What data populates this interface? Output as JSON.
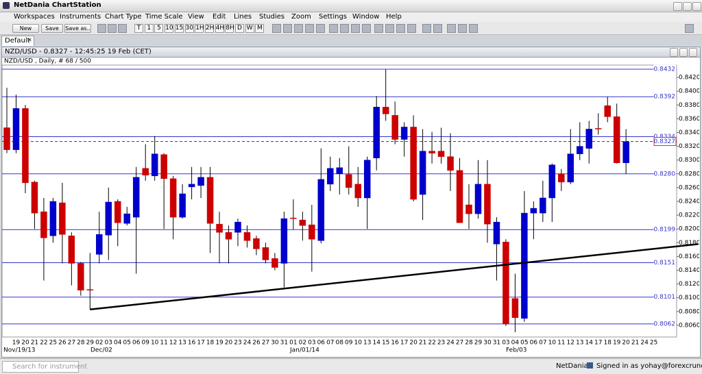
{
  "app": {
    "title": "NetDania ChartStation",
    "menu": [
      "Workspaces",
      "Instruments",
      "Chart Type",
      "Time Scale",
      "View",
      "Edit",
      "Lines",
      "Studies",
      "Zoom",
      "Settings",
      "Window",
      "Help"
    ]
  },
  "toolbar": {
    "buttons": [
      "New",
      "Save",
      "Save as.."
    ],
    "timescale": [
      "T",
      "1",
      "5",
      "10",
      "15",
      "30",
      "1H",
      "2H",
      "4H",
      "8H",
      "D",
      "W",
      "M"
    ]
  },
  "tabs": [
    "Default"
  ],
  "chart_window": {
    "title": "NZD/USD - 0.8327 - 12:45:25  19 Feb (CET)"
  },
  "chart_data": {
    "type": "candlestick",
    "title": "NZD/USD , Daily, # 68 / 500",
    "categories": [
      null,
      "19",
      "20",
      "21",
      "22",
      "25",
      "26",
      "27",
      "28",
      "29",
      "02",
      "03",
      "04",
      "05",
      "06",
      "09",
      "10",
      "11",
      "12",
      "13",
      "16",
      "17",
      "18",
      "19",
      "20",
      "23",
      "24",
      "26",
      "27",
      "30",
      "31",
      "01",
      "02",
      "03",
      "06",
      "07",
      "08",
      "09",
      "10",
      "13",
      "14",
      "15",
      "16",
      "17",
      "20",
      "21",
      "22",
      "23",
      "24",
      "27",
      "28",
      "29",
      "30",
      "31",
      "03",
      "04",
      "05",
      "06",
      "07",
      "10",
      "11",
      "12",
      "13",
      "14",
      "17",
      "18",
      "19",
      "20",
      "21",
      "24",
      "25"
    ],
    "period_labels": [
      "Nov/19/13",
      "Dec/02",
      "Jan/01/14",
      "Feb/03"
    ],
    "open": [
      0.8347,
      0.8315,
      0.8375,
      0.8268,
      0.8225,
      0.819,
      0.8238,
      0.819,
      0.815,
      0.8112,
      0.8163,
      0.8191,
      0.824,
      0.8208,
      0.8217,
      0.8288,
      0.8277,
      0.8308,
      0.8273,
      0.8217,
      0.8261,
      0.8263,
      0.8275,
      0.8207,
      0.8195,
      0.8195,
      0.8195,
      0.8186,
      0.8173,
      0.8157,
      0.815,
      0.8216,
      0.8213,
      0.8206,
      0.8183,
      0.8265,
      0.828,
      0.8279,
      0.8265,
      0.8245,
      0.8303,
      0.8377,
      0.8365,
      0.833,
      0.8348,
      0.825,
      0.8313,
      0.8313,
      0.8305,
      0.8285,
      0.8235,
      0.8222,
      0.8265,
      0.8178,
      0.8181,
      0.8099,
      0.807,
      0.8223,
      0.8223,
      0.8245,
      0.828,
      0.8268,
      0.8309,
      0.8317,
      0.8346,
      0.8379,
      0.8363,
      0.8296,
      null,
      null,
      null
    ],
    "high": [
      0.8405,
      0.8395,
      0.838,
      0.827,
      0.8245,
      0.8245,
      0.8267,
      0.8195,
      0.8152,
      0.8165,
      0.8225,
      0.826,
      0.8243,
      0.8232,
      0.829,
      0.8323,
      0.8335,
      0.831,
      0.8277,
      0.8265,
      0.829,
      0.829,
      0.829,
      0.8225,
      0.8205,
      0.8215,
      0.8205,
      0.819,
      0.818,
      0.8165,
      0.8225,
      0.8243,
      0.8225,
      0.8235,
      0.8317,
      0.8305,
      0.8303,
      0.832,
      0.829,
      0.8305,
      0.8393,
      0.8432,
      0.8385,
      0.8355,
      0.8365,
      0.8345,
      0.8341,
      0.8347,
      0.8339,
      0.8303,
      0.8265,
      0.83,
      0.83,
      0.8217,
      0.8185,
      0.8135,
      0.8255,
      0.824,
      0.827,
      0.8295,
      0.8287,
      0.8345,
      0.8355,
      0.8357,
      0.8368,
      0.8392,
      0.8382,
      0.8345,
      null,
      null,
      null
    ],
    "low": [
      0.831,
      0.831,
      0.8252,
      0.82,
      0.8125,
      0.818,
      0.815,
      0.8118,
      0.8103,
      0.8083,
      0.815,
      0.8155,
      0.8175,
      0.8205,
      0.8135,
      0.827,
      0.827,
      0.82,
      0.8185,
      0.8215,
      0.8243,
      0.8245,
      0.8165,
      0.815,
      0.815,
      0.8175,
      0.8173,
      0.8162,
      0.815,
      0.814,
      0.8115,
      0.8199,
      0.8183,
      0.8138,
      0.8179,
      0.8255,
      0.825,
      0.825,
      0.8232,
      0.82,
      0.8285,
      0.8357,
      0.8323,
      0.8305,
      0.824,
      0.8213,
      0.8295,
      0.8295,
      0.8255,
      0.8209,
      0.82,
      0.8215,
      0.818,
      0.8125,
      0.8059,
      0.805,
      0.8065,
      0.8185,
      0.821,
      0.821,
      0.8255,
      0.8265,
      0.83,
      0.8295,
      0.8337,
      0.8355,
      0.8295,
      0.828,
      null,
      null,
      null
    ],
    "close": [
      0.8315,
      0.8375,
      0.8267,
      0.8223,
      0.8187,
      0.824,
      0.8192,
      0.815,
      0.8111,
      0.8111,
      0.8192,
      0.8239,
      0.8209,
      0.8222,
      0.8275,
      0.8278,
      0.8309,
      0.8273,
      0.8217,
      0.8251,
      0.8265,
      0.8275,
      0.8208,
      0.8195,
      0.8185,
      0.821,
      0.8183,
      0.8171,
      0.8155,
      0.8144,
      0.8215,
      0.8215,
      0.8205,
      0.8185,
      0.8272,
      0.8288,
      0.8289,
      0.826,
      0.8245,
      0.83,
      0.8377,
      0.8367,
      0.833,
      0.8348,
      0.8243,
      0.8313,
      0.831,
      0.8305,
      0.8285,
      0.8209,
      0.8222,
      0.8265,
      0.8207,
      0.821,
      0.8062,
      0.8071,
      0.8223,
      0.823,
      0.8245,
      0.8293,
      0.8268,
      0.8309,
      0.832,
      0.8345,
      0.8345,
      0.8363,
      0.8296,
      0.8327,
      null,
      null,
      null
    ],
    "up_color": "#0000cc",
    "down_color": "#cc0000",
    "ylim": [
      0.8043,
      0.8438
    ],
    "yticks": [
      {
        "value": 0.806,
        "label": "0.8060"
      },
      {
        "value": 0.808,
        "label": "0.8080"
      },
      {
        "value": 0.81,
        "label": "0.8100"
      },
      {
        "value": 0.812,
        "label": "0.8120"
      },
      {
        "value": 0.814,
        "label": "0.8140"
      },
      {
        "value": 0.816,
        "label": "0.8160"
      },
      {
        "value": 0.818,
        "label": "0.8180"
      },
      {
        "value": 0.82,
        "label": "0.8200"
      },
      {
        "value": 0.822,
        "label": "0.8220"
      },
      {
        "value": 0.824,
        "label": "0.8240"
      },
      {
        "value": 0.826,
        "label": "0.8260"
      },
      {
        "value": 0.828,
        "label": "0.8280"
      },
      {
        "value": 0.83,
        "label": "0.8300"
      },
      {
        "value": 0.832,
        "label": "0.8320"
      },
      {
        "value": 0.834,
        "label": "0.8340"
      },
      {
        "value": 0.836,
        "label": "0.8360"
      },
      {
        "value": 0.838,
        "label": "0.8380"
      },
      {
        "value": 0.84,
        "label": "0.8400"
      },
      {
        "value": 0.842,
        "label": "0.8420"
      }
    ],
    "hlines": [
      0.8432,
      0.8392,
      0.8334,
      {
        "value": 0.828,
        "label": "0.8280"
      },
      0.8199,
      0.8151,
      0.8101,
      0.8062
    ],
    "hline_color": "#3333cc",
    "current_price": 0.8327,
    "current_color": "#cc0000",
    "trend_line": {
      "x": [
        9,
        74.8
      ],
      "y": [
        0.8083,
        0.8178
      ],
      "color": "#000000"
    }
  },
  "status": {
    "search_placeholder": "Search for instrument",
    "brand": "NetDania",
    "signed_in": "Signed in as yohay@forexcrunch.com"
  }
}
